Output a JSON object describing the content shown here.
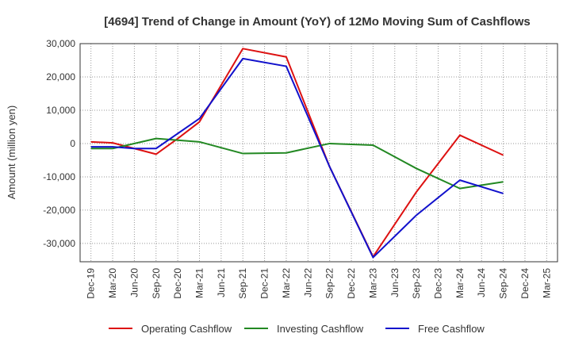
{
  "chart_data": {
    "type": "line",
    "title": "[4694]  Trend of Change in Amount (YoY) of 12Mo Moving Sum of Cashflows",
    "xlabel": "",
    "ylabel": "Amount (million yen)",
    "ylim": [
      -35500,
      30000
    ],
    "yticks": [
      30000,
      20000,
      10000,
      0,
      -10000,
      -20000,
      -30000
    ],
    "ytick_labels": [
      "30,000",
      "20,000",
      "10,000",
      "0",
      "-10,000",
      "-20,000",
      "-30,000"
    ],
    "categories": [
      "Dec-19",
      "Mar-20",
      "Jun-20",
      "Sep-20",
      "Dec-20",
      "Mar-21",
      "Jun-21",
      "Sep-21",
      "Dec-21",
      "Mar-22",
      "Jun-22",
      "Sep-22",
      "Dec-22",
      "Mar-23",
      "Jun-23",
      "Sep-23",
      "Dec-23",
      "Mar-24",
      "Jun-24",
      "Sep-24",
      "Dec-24",
      "Mar-25"
    ],
    "grid": true,
    "legend_position": "bottom",
    "series": [
      {
        "name": "Operating Cashflow",
        "color": "#dd1111",
        "values": [
          500,
          200,
          -1500,
          -3200,
          1500,
          6500,
          null,
          28500,
          null,
          26000,
          null,
          -7000,
          null,
          -34000,
          null,
          -14500,
          null,
          2500,
          null,
          -3500,
          null,
          null
        ]
      },
      {
        "name": "Investing Cashflow",
        "color": "#228822",
        "values": [
          -1500,
          -1500,
          null,
          1500,
          1000,
          500,
          null,
          -3000,
          null,
          -2800,
          null,
          0,
          null,
          -500,
          null,
          -7500,
          null,
          -13500,
          null,
          -11500,
          null,
          null
        ]
      },
      {
        "name": "Free Cashflow",
        "color": "#1111cc",
        "values": [
          -1000,
          -1000,
          -1500,
          -1500,
          null,
          7500,
          null,
          25500,
          null,
          23200,
          null,
          -7000,
          null,
          -34200,
          null,
          -21500,
          null,
          -11000,
          null,
          -15000,
          null,
          null
        ]
      }
    ]
  }
}
